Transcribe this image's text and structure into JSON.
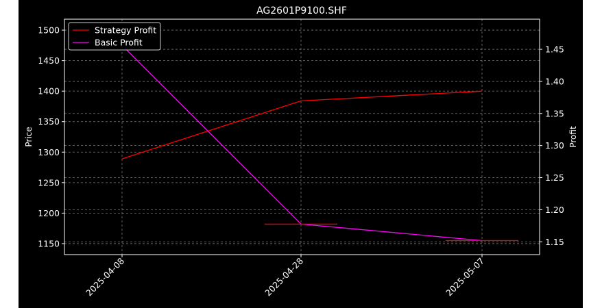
{
  "chart_data": {
    "type": "line",
    "title": "AG2601P9100.SHF",
    "xlabel": "",
    "ylabel_left": "Price",
    "ylabel_right": "Profit",
    "x": [
      "2025-04-08",
      "2025-04-28",
      "2025-05-07"
    ],
    "x_ticks": [
      "2025-04-08",
      "2025-04-28",
      "2025-05-07"
    ],
    "y_left_ticks": [
      1150,
      1200,
      1250,
      1300,
      1350,
      1400,
      1450,
      1500
    ],
    "y_right_ticks": [
      1.15,
      1.2,
      1.25,
      1.3,
      1.35,
      1.4,
      1.45
    ],
    "ylim_left": [
      1132,
      1518
    ],
    "ylim_right": [
      1.13,
      1.497
    ],
    "grid": true,
    "legend_position": "upper-left",
    "series": [
      {
        "name": "Strategy Profit",
        "axis": "left",
        "color": "#ff0000",
        "values": [
          1289,
          1384,
          1400
        ]
      },
      {
        "name": "Basic Profit",
        "axis": "left",
        "color": "#ff00ff",
        "values": [
          1475,
          1182,
          1155
        ]
      }
    ],
    "price_markers": [
      {
        "date": "2025-04-28",
        "value": 1182,
        "color": "#ff0000"
      },
      {
        "date": "2025-05-07",
        "value": 1155,
        "color": "#ff0000"
      }
    ]
  },
  "colors": {
    "background": "#000000",
    "outer": "#ffffff",
    "foreground": "#ffffff",
    "grid": "#7a7a7a"
  }
}
